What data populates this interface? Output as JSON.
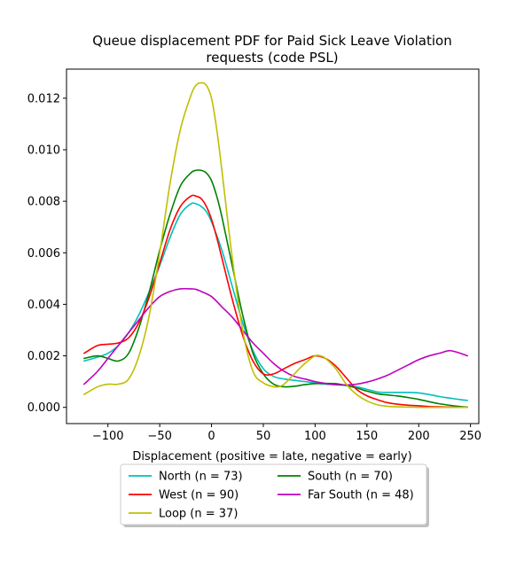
{
  "chart_data": {
    "type": "line",
    "title_line1": "Queue displacement PDF for Paid Sick Leave Violation",
    "title_line2": "requests (code PSL)",
    "xlabel": "Displacement (positive = late, negative = early)",
    "ylabel": "",
    "xlim": [
      -140,
      258
    ],
    "ylim": [
      -0.00063,
      0.01313
    ],
    "x_ticks": [
      -100,
      -50,
      0,
      50,
      100,
      150,
      200,
      250
    ],
    "x_tick_labels": [
      "−100",
      "−50",
      "0",
      "50",
      "100",
      "150",
      "200",
      "250"
    ],
    "y_ticks": [
      0.0,
      0.002,
      0.004,
      0.006,
      0.008,
      0.01,
      0.012
    ],
    "y_tick_labels": [
      "0.000",
      "0.002",
      "0.004",
      "0.006",
      "0.008",
      "0.010",
      "0.012"
    ],
    "grid": false,
    "legend_position": "below-center",
    "series": [
      {
        "name": "North (n = 73)",
        "color": "#00bfbf",
        "x": [
          -123,
          -110,
          -100,
          -90,
          -80,
          -70,
          -60,
          -50,
          -40,
          -30,
          -20,
          -15,
          -10,
          -5,
          0,
          10,
          20,
          30,
          40,
          50,
          60,
          70,
          80,
          90,
          100,
          110,
          120,
          130,
          140,
          150,
          160,
          170,
          180,
          190,
          200,
          210,
          220,
          230,
          240,
          247
        ],
        "y": [
          0.0018,
          0.00195,
          0.0021,
          0.0024,
          0.0029,
          0.0036,
          0.0045,
          0.0055,
          0.0066,
          0.0075,
          0.0079,
          0.0079,
          0.0078,
          0.0076,
          0.0072,
          0.0061,
          0.0047,
          0.0033,
          0.0022,
          0.0015,
          0.0012,
          0.0011,
          0.00105,
          0.001,
          0.00095,
          0.0009,
          0.00088,
          0.00085,
          0.0008,
          0.0007,
          0.0006,
          0.00058,
          0.00058,
          0.00058,
          0.00056,
          0.0005,
          0.00042,
          0.00036,
          0.0003,
          0.00027
        ]
      },
      {
        "name": "South (n = 70)",
        "color": "#008000",
        "x": [
          -123,
          -110,
          -100,
          -90,
          -80,
          -70,
          -60,
          -50,
          -40,
          -30,
          -20,
          -15,
          -10,
          -5,
          0,
          5,
          10,
          20,
          30,
          40,
          50,
          60,
          70,
          80,
          90,
          100,
          110,
          120,
          130,
          140,
          150,
          160,
          170,
          180,
          190,
          200,
          210,
          220,
          230,
          240,
          247
        ],
        "y": [
          0.0019,
          0.002,
          0.0019,
          0.0018,
          0.0021,
          0.0031,
          0.0045,
          0.0061,
          0.0075,
          0.0086,
          0.0091,
          0.0092,
          0.0092,
          0.0091,
          0.0088,
          0.0082,
          0.0074,
          0.0055,
          0.0036,
          0.0021,
          0.0013,
          0.0009,
          0.0008,
          0.00082,
          0.00088,
          0.00092,
          0.00093,
          0.00092,
          0.00085,
          0.00075,
          0.00063,
          0.00053,
          0.00048,
          0.00044,
          0.00038,
          0.00031,
          0.00022,
          0.00014,
          8e-05,
          3e-05,
          1e-05
        ]
      },
      {
        "name": "West (n = 90)",
        "color": "#ff0000",
        "x": [
          -123,
          -110,
          -100,
          -90,
          -80,
          -70,
          -60,
          -50,
          -40,
          -30,
          -20,
          -15,
          -10,
          -5,
          0,
          5,
          10,
          20,
          30,
          40,
          50,
          60,
          70,
          80,
          90,
          100,
          110,
          120,
          130,
          140,
          150,
          160,
          170,
          180,
          190,
          200,
          210,
          220,
          230,
          240,
          247
        ],
        "y": [
          0.0021,
          0.0024,
          0.00245,
          0.0025,
          0.0027,
          0.0033,
          0.0043,
          0.0056,
          0.0069,
          0.0078,
          0.0082,
          0.0082,
          0.0081,
          0.0078,
          0.0073,
          0.0066,
          0.0058,
          0.0042,
          0.0028,
          0.0018,
          0.0013,
          0.0013,
          0.0015,
          0.0017,
          0.00185,
          0.002,
          0.0019,
          0.0016,
          0.00115,
          0.0007,
          0.00045,
          0.0003,
          0.00018,
          0.00012,
          8e-05,
          6e-05,
          3e-05,
          2e-05,
          1e-05,
          0.0,
          0.0
        ]
      },
      {
        "name": "Far South (n = 48)",
        "color": "#bf00bf",
        "x": [
          -123,
          -110,
          -100,
          -90,
          -80,
          -70,
          -60,
          -50,
          -40,
          -30,
          -20,
          -15,
          -10,
          0,
          10,
          20,
          30,
          40,
          50,
          60,
          70,
          80,
          90,
          100,
          110,
          120,
          130,
          140,
          150,
          160,
          170,
          180,
          190,
          200,
          210,
          220,
          230,
          240,
          247
        ],
        "y": [
          0.0009,
          0.0014,
          0.0019,
          0.0024,
          0.0029,
          0.0034,
          0.0039,
          0.0043,
          0.0045,
          0.0046,
          0.0046,
          0.00458,
          0.0045,
          0.0043,
          0.0039,
          0.0035,
          0.003,
          0.0025,
          0.0021,
          0.0017,
          0.0014,
          0.0012,
          0.0011,
          0.001,
          0.00093,
          0.00088,
          0.00087,
          0.0009,
          0.00098,
          0.0011,
          0.00125,
          0.00145,
          0.00165,
          0.00185,
          0.002,
          0.0021,
          0.0022,
          0.0021,
          0.002
        ]
      },
      {
        "name": "Loop (n = 37)",
        "color": "#bfbf00",
        "x": [
          -123,
          -110,
          -100,
          -90,
          -80,
          -70,
          -60,
          -50,
          -40,
          -30,
          -20,
          -15,
          -10,
          -5,
          0,
          5,
          10,
          20,
          30,
          40,
          50,
          60,
          65,
          70,
          80,
          90,
          100,
          105,
          110,
          120,
          130,
          140,
          150,
          160,
          170,
          180,
          190,
          200,
          220,
          247
        ],
        "y": [
          0.0005,
          0.0008,
          0.0009,
          0.0009,
          0.0011,
          0.002,
          0.0036,
          0.006,
          0.0087,
          0.0108,
          0.0121,
          0.0125,
          0.0126,
          0.0125,
          0.012,
          0.0108,
          0.0092,
          0.0058,
          0.003,
          0.0014,
          0.00095,
          0.0008,
          0.0008,
          0.0009,
          0.0013,
          0.0017,
          0.002,
          0.002,
          0.0019,
          0.0015,
          0.0009,
          0.0005,
          0.00025,
          0.0001,
          4e-05,
          2e-05,
          1e-05,
          0.0,
          0.0,
          0.0
        ]
      }
    ],
    "legend_rows": [
      [
        {
          "series": 0
        },
        {
          "series": 1
        }
      ],
      [
        {
          "series": 2
        },
        {
          "series": 3
        }
      ],
      [
        {
          "series": 4
        }
      ]
    ]
  }
}
